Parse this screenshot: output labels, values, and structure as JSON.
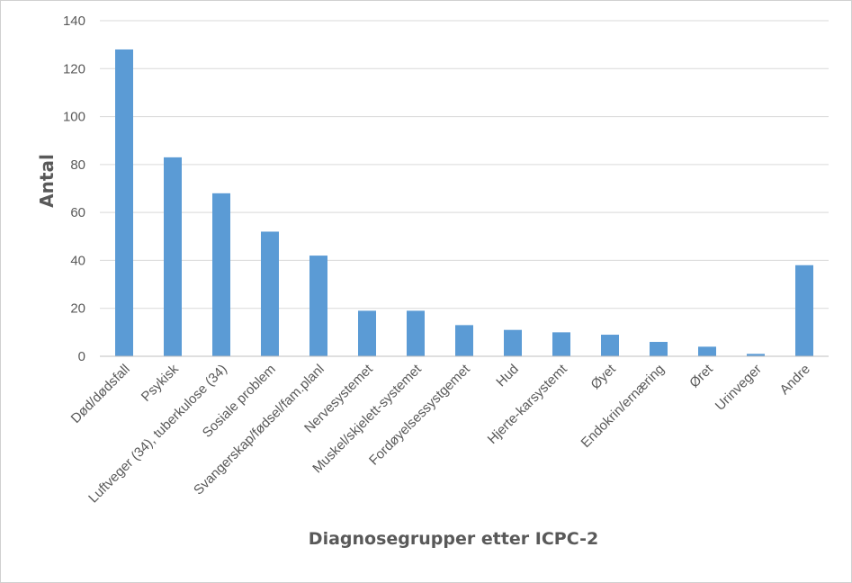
{
  "chart_data": {
    "type": "bar",
    "title": "",
    "xlabel": "Diagnosegrupper etter ICPC-2",
    "ylabel": "Antal",
    "ylim": [
      0,
      140
    ],
    "yticks": [
      0,
      20,
      40,
      60,
      80,
      100,
      120,
      140
    ],
    "grid": true,
    "legend": "none",
    "bar_color": "#5b9bd5",
    "categories": [
      "Død/dødsfall",
      "Psykisk",
      "Luftveger (34), tuberkulose (34)",
      "Sosiale problem",
      "Svangerskap/fødsel/fam.planl",
      "Nervesystemet",
      "Muskel/skjelett-systemet",
      "Fordøyelsessystgemet",
      "Hud",
      "Hjerte-karsystemt",
      "Øyet",
      "Endokrin/ernæring",
      "Øret",
      "Urinveger",
      "Andre"
    ],
    "values": [
      128,
      83,
      68,
      52,
      42,
      19,
      19,
      13,
      11,
      10,
      9,
      6,
      4,
      1,
      38
    ]
  }
}
